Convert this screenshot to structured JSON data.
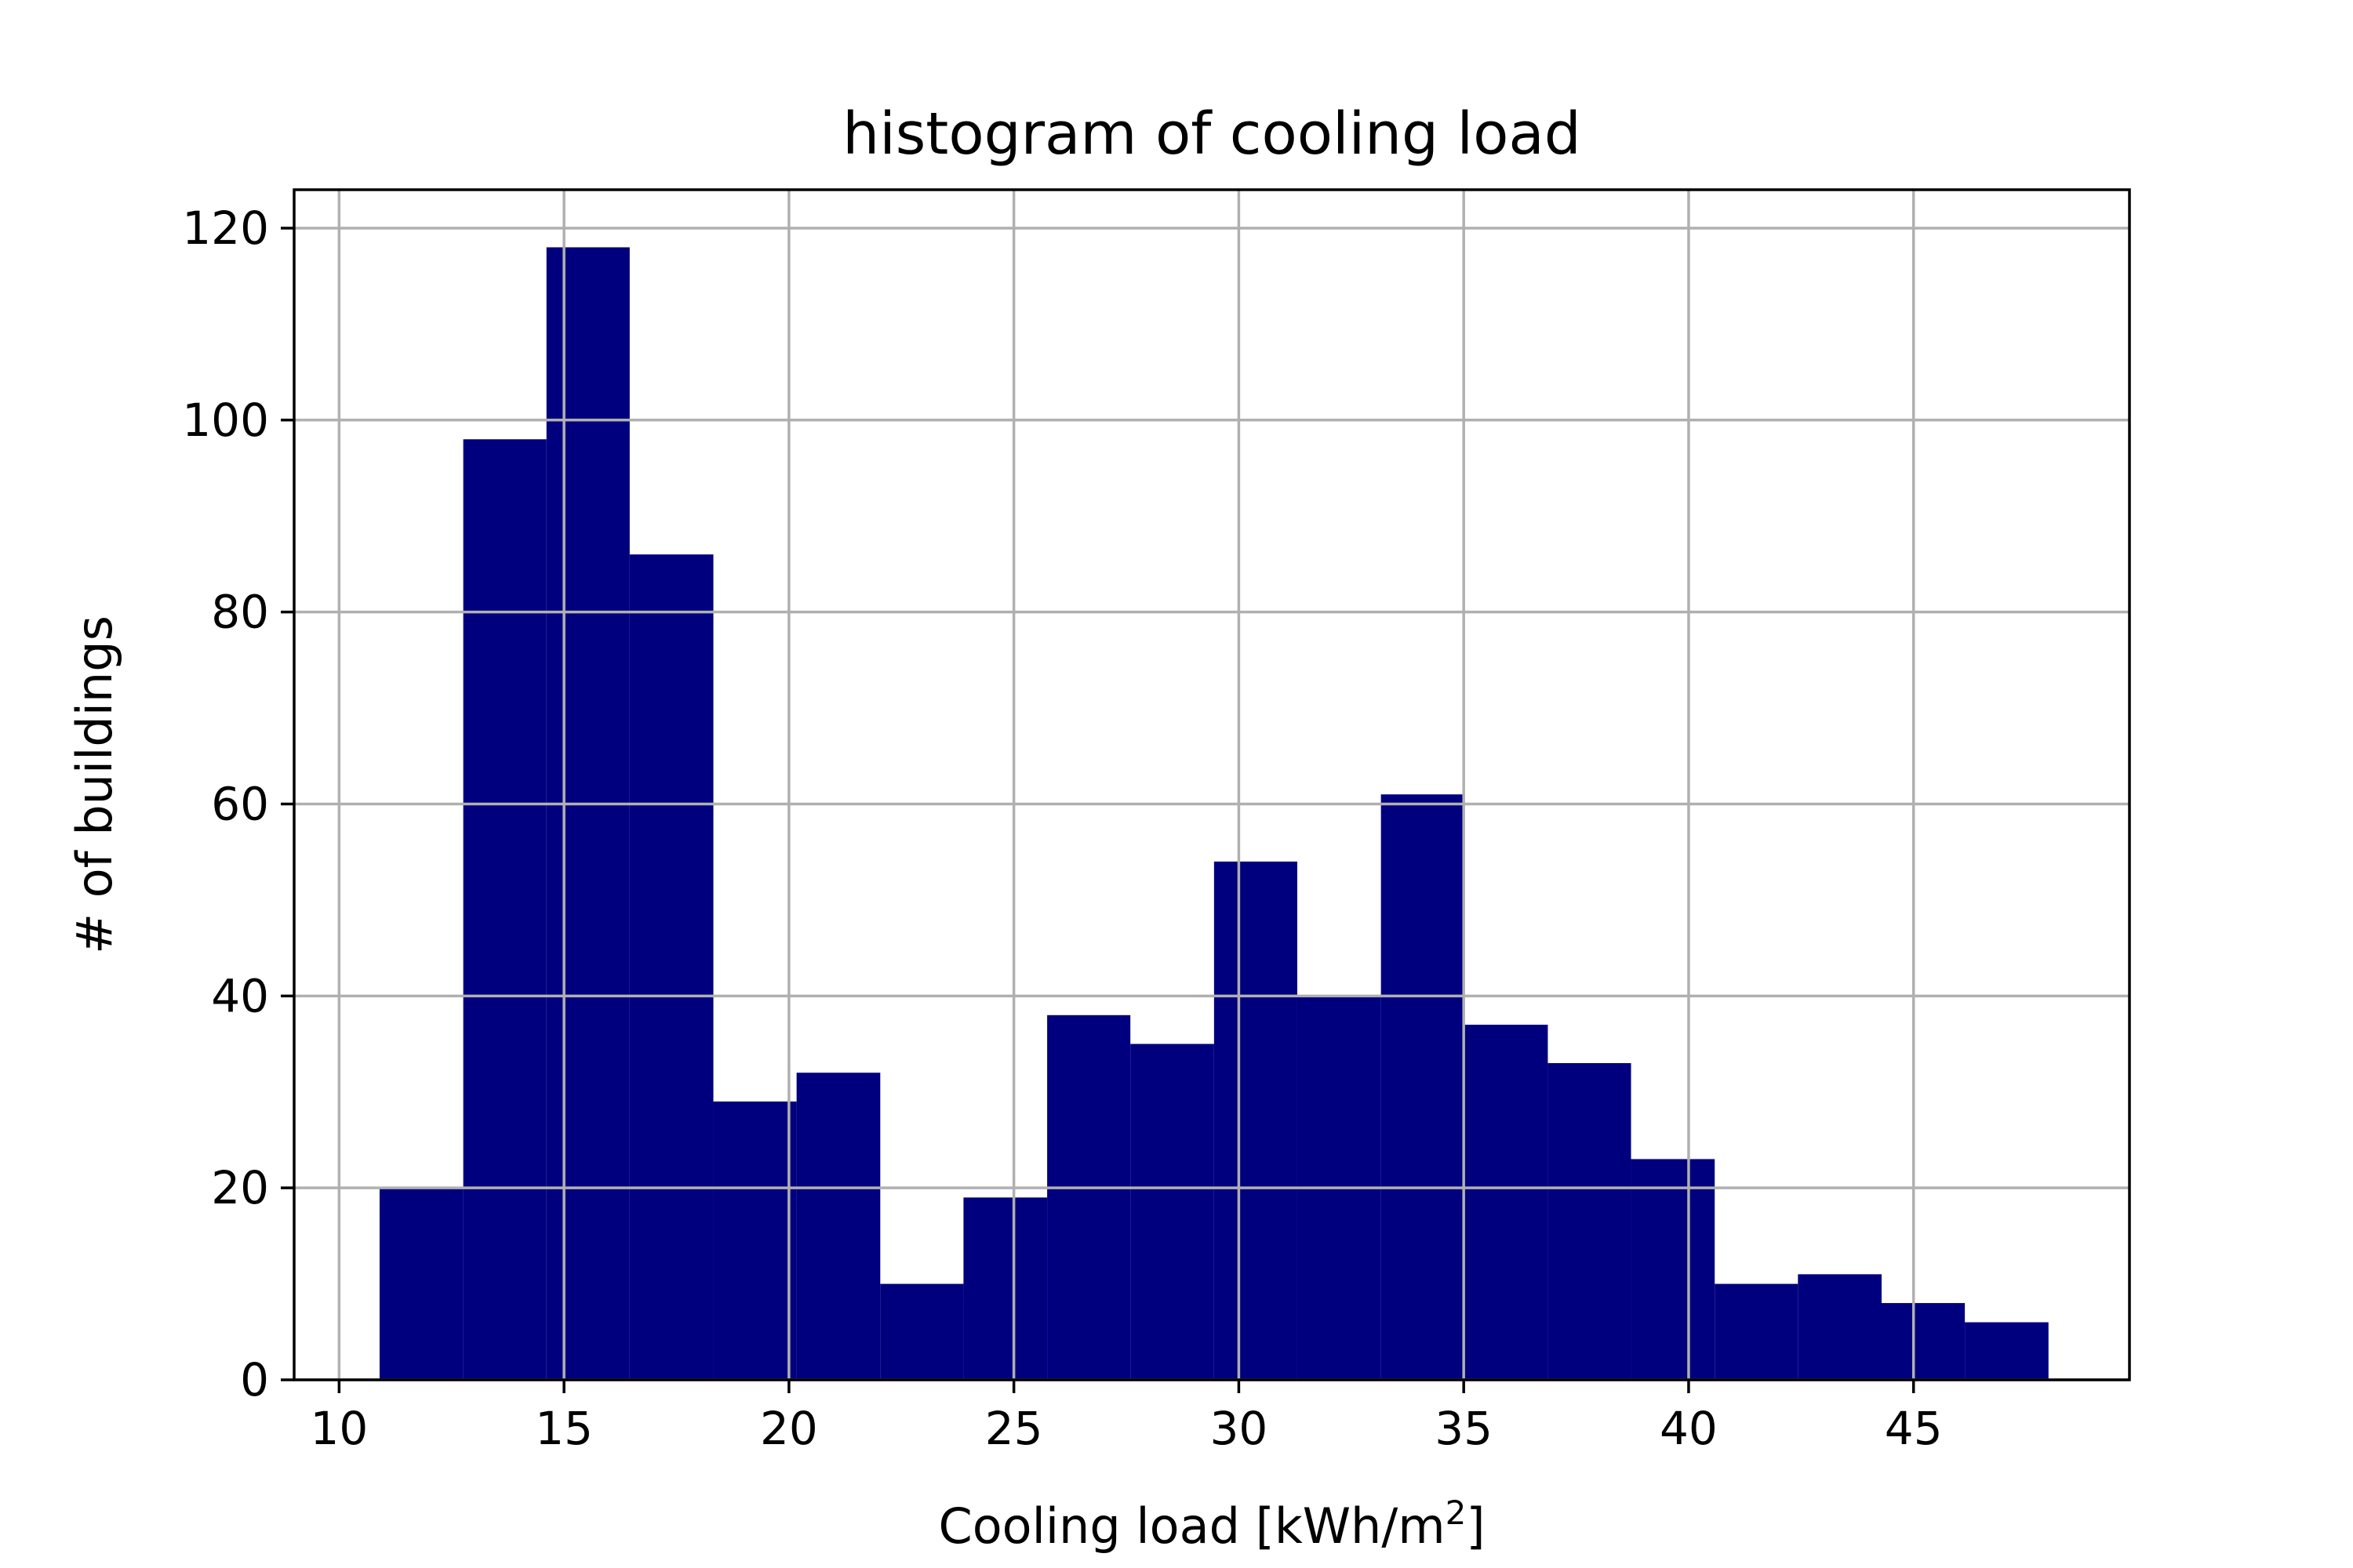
{
  "chart_data": {
    "type": "bar",
    "subtype": "histogram",
    "title": "histogram of cooling load",
    "xlabel": "Cooling load [kWh/m",
    "xlabel_superscript": "2",
    "xlabel_suffix": "]",
    "ylabel": "# of buildings",
    "xlim": [
      9.0,
      49.8
    ],
    "ylim": [
      0,
      124
    ],
    "x_ticks": [
      10,
      15,
      20,
      25,
      30,
      35,
      40,
      45
    ],
    "x_tick_labels": [
      "10",
      "15",
      "20",
      "25",
      "30",
      "35",
      "40",
      "45"
    ],
    "y_ticks": [
      0,
      20,
      40,
      60,
      80,
      100,
      120
    ],
    "y_tick_labels": [
      "0",
      "20",
      "40",
      "60",
      "80",
      "100",
      "120"
    ],
    "grid": true,
    "bar_color": "#00007f",
    "grid_color": "#b0b0b0",
    "bin_edges": [
      10.9,
      12.76,
      14.61,
      16.46,
      18.32,
      20.17,
      22.03,
      23.88,
      25.74,
      27.59,
      29.45,
      31.3,
      33.16,
      35.01,
      36.87,
      38.72,
      40.58,
      42.43,
      44.29,
      46.14,
      48.0
    ],
    "counts": [
      20,
      98,
      118,
      86,
      29,
      32,
      10,
      19,
      38,
      35,
      54,
      40,
      61,
      37,
      33,
      23,
      10,
      11,
      8,
      6
    ]
  }
}
